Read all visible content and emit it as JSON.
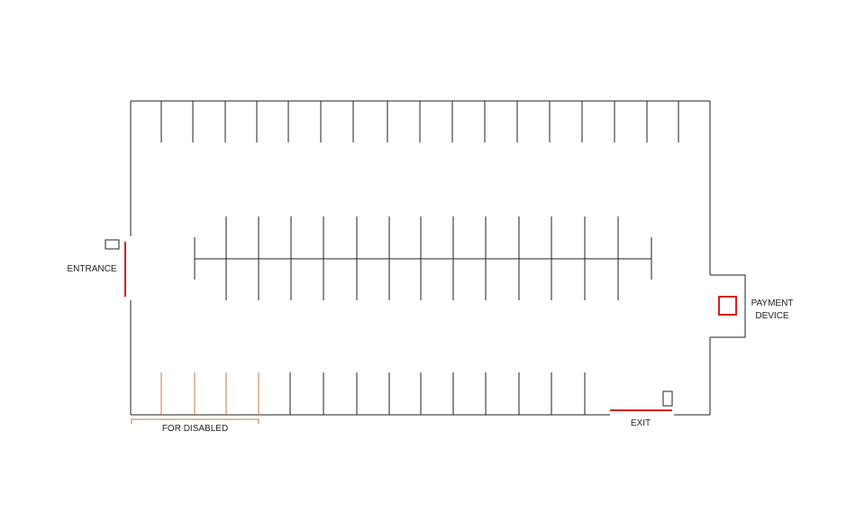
{
  "labels": {
    "entrance": "ENTRANCE",
    "payment_line1": "PAYMENT",
    "payment_line2": "DEVICE",
    "disabled": "FOR DISABLED",
    "exit": "EXIT"
  },
  "colors": {
    "wall": "#222222",
    "gate": "#d42020",
    "disabled": "#c07840",
    "background": "#ffffff"
  },
  "counts": {
    "top_row_stalls": 18,
    "middle_row_stalls_each_side": 14,
    "bottom_row_stalls": 14,
    "disabled_stalls": 4
  }
}
